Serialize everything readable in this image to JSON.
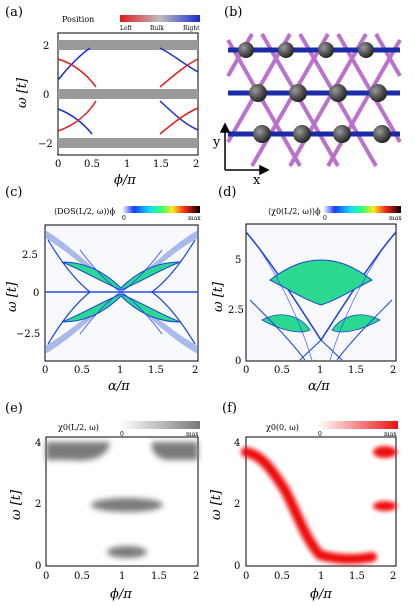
{
  "panels": {
    "a": {
      "label": "(a)",
      "legend_title": "Position",
      "legend_left": "Left",
      "legend_bulk": "Bulk",
      "legend_right": "Right",
      "ylabel": "ω [t]",
      "xlabel": "ϕ/π",
      "yticks": [
        "2",
        "0",
        "−2"
      ],
      "xticks": [
        "0",
        "0.5",
        "1",
        "1.5",
        "2"
      ]
    },
    "b": {
      "label": "(b)",
      "axis_y": "y",
      "axis_x": "x"
    },
    "c": {
      "label": "(c)",
      "title": "⟨DOS(L/2, ω)⟩ϕ",
      "cbar_min": "0",
      "cbar_max": "max",
      "ylabel": "ω [t]",
      "xlabel": "α/π",
      "yticks": [
        "2.5",
        "0",
        "−2.5"
      ],
      "xticks": [
        "0",
        "0.5",
        "1",
        "1.5",
        "2"
      ]
    },
    "d": {
      "label": "(d)",
      "title": "⟨χ0(L/2, ω)⟩ϕ",
      "cbar_min": "0",
      "cbar_max": "max",
      "ylabel": "ω [t]",
      "xlabel": "α/π",
      "yticks": [
        "5",
        "2.5",
        "0"
      ],
      "xticks": [
        "0",
        "0.5",
        "1",
        "1.5",
        "2"
      ]
    },
    "e": {
      "label": "(e)",
      "title": "χ0(L/2, ω)",
      "cbar_min": "0",
      "cbar_max": "max",
      "ylabel": "ω [t]",
      "xlabel": "ϕ/π",
      "yticks": [
        "4",
        "2",
        "0"
      ],
      "xticks": [
        "0",
        "0.5",
        "1",
        "1.5",
        "2"
      ]
    },
    "f": {
      "label": "(f)",
      "title": "χ0(0, ω)",
      "cbar_min": "0",
      "cbar_max": "max",
      "ylabel": "ω [t]",
      "xlabel": "ϕ/π",
      "yticks": [
        "4",
        "2",
        "0"
      ],
      "xticks": [
        "0",
        "0.5",
        "1",
        "1.5",
        "2"
      ]
    }
  },
  "colors": {
    "left": "#e21b1b",
    "right": "#1c2bd6",
    "bulk": "#8a8a8a",
    "lattice_a": "#b463c8",
    "lattice_b": "#1a2aa8",
    "atom": "#3a3a3a",
    "gray_map": "#808080",
    "red_map": "#ee1111"
  }
}
